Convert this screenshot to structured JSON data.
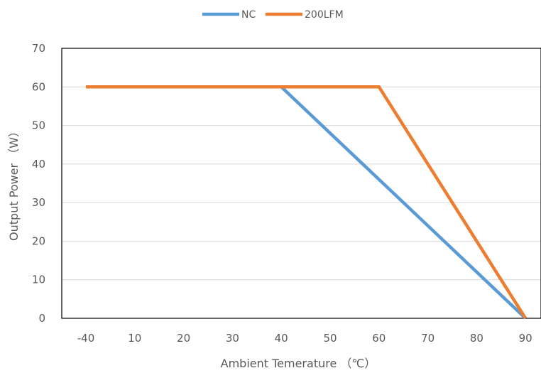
{
  "chart_data": {
    "type": "line",
    "title": "",
    "xlabel": "Ambient Temerature （℃）",
    "ylabel": "Output Power （W）",
    "categories": [
      "-40",
      "10",
      "20",
      "30",
      "40",
      "50",
      "60",
      "70",
      "80",
      "90"
    ],
    "ylim": [
      0,
      70
    ],
    "yticks": [
      "0",
      "10",
      "20",
      "30",
      "40",
      "50",
      "60",
      "70"
    ],
    "grid": true,
    "legend_position": "top",
    "series": [
      {
        "name": "NC",
        "color": "#5b9bd5",
        "x": [
          "-40",
          "40",
          "90"
        ],
        "values": [
          60,
          60,
          0
        ]
      },
      {
        "name": "200LFM",
        "color": "#ed7d31",
        "x": [
          "-40",
          "60",
          "90"
        ],
        "values": [
          60,
          60,
          0
        ]
      }
    ]
  }
}
